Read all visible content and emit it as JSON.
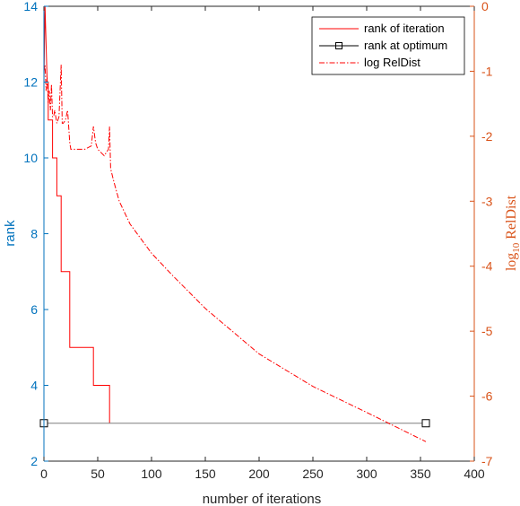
{
  "chart_data": {
    "type": "line",
    "xlabel": "number of iterations",
    "ylabel_left": "rank",
    "ylabel_right_main": "log",
    "ylabel_right_sub": "10",
    "ylabel_right_tail": " RelDist",
    "xlim": [
      0,
      400
    ],
    "ylim_left": [
      2,
      14
    ],
    "ylim_right": [
      -7,
      0
    ],
    "x_ticks": [
      "0",
      "50",
      "100",
      "150",
      "200",
      "250",
      "300",
      "350",
      "400"
    ],
    "y_ticks_left": [
      "2",
      "4",
      "6",
      "8",
      "10",
      "12",
      "14"
    ],
    "y_ticks_right": [
      "0",
      "-1",
      "-2",
      "-3",
      "-4",
      "-5",
      "-6",
      "-7"
    ],
    "colors": {
      "left_axis": "#0072BD",
      "right_axis": "#D95319",
      "rank_iteration": "#ff0000",
      "rank_optimum": "#000000",
      "log_reldist": "#ff0000"
    },
    "legend": {
      "position": "top-right",
      "entries": [
        "rank of iteration",
        "rank at optimum",
        "log RelDist"
      ]
    },
    "series": [
      {
        "name": "rank of iteration",
        "axis": "left",
        "style": "solid",
        "x": [
          0,
          1,
          2,
          2,
          3,
          4,
          4,
          5,
          6,
          6,
          7,
          8,
          8,
          10,
          10,
          12,
          12,
          16,
          16,
          20,
          20,
          24,
          24,
          46,
          46,
          61,
          61
        ],
        "y": [
          12,
          14,
          13,
          13,
          12,
          12,
          11,
          11,
          11,
          11,
          11,
          11,
          10,
          10,
          10,
          10,
          9,
          9,
          7,
          7,
          7,
          7,
          5,
          5,
          4,
          4,
          3
        ]
      },
      {
        "name": "rank at optimum",
        "axis": "left",
        "style": "solid-square-markers",
        "x": [
          0,
          355
        ],
        "y": [
          3,
          3
        ]
      },
      {
        "name": "log RelDist",
        "axis": "right",
        "style": "dashdot",
        "x": [
          0,
          1,
          2,
          3,
          4,
          5,
          6,
          7,
          8,
          9,
          10,
          12,
          14,
          16,
          17,
          18,
          20,
          22,
          24,
          25,
          30,
          38,
          44,
          46,
          48,
          50,
          56,
          60,
          61,
          62,
          65,
          70,
          80,
          100,
          120,
          150,
          200,
          250,
          300,
          355
        ],
        "y": [
          -1.0,
          -0.9,
          -1.3,
          -1.1,
          -1.5,
          -1.3,
          -1.6,
          -1.2,
          -1.7,
          -1.7,
          -1.6,
          -1.8,
          -1.7,
          -0.9,
          -1.8,
          -1.8,
          -1.75,
          -1.6,
          -2.1,
          -2.2,
          -2.2,
          -2.2,
          -2.15,
          -1.85,
          -2.1,
          -2.2,
          -2.3,
          -2.2,
          -1.85,
          -2.5,
          -2.7,
          -3.0,
          -3.35,
          -3.8,
          -4.15,
          -4.65,
          -5.35,
          -5.85,
          -6.25,
          -6.7
        ]
      }
    ]
  }
}
